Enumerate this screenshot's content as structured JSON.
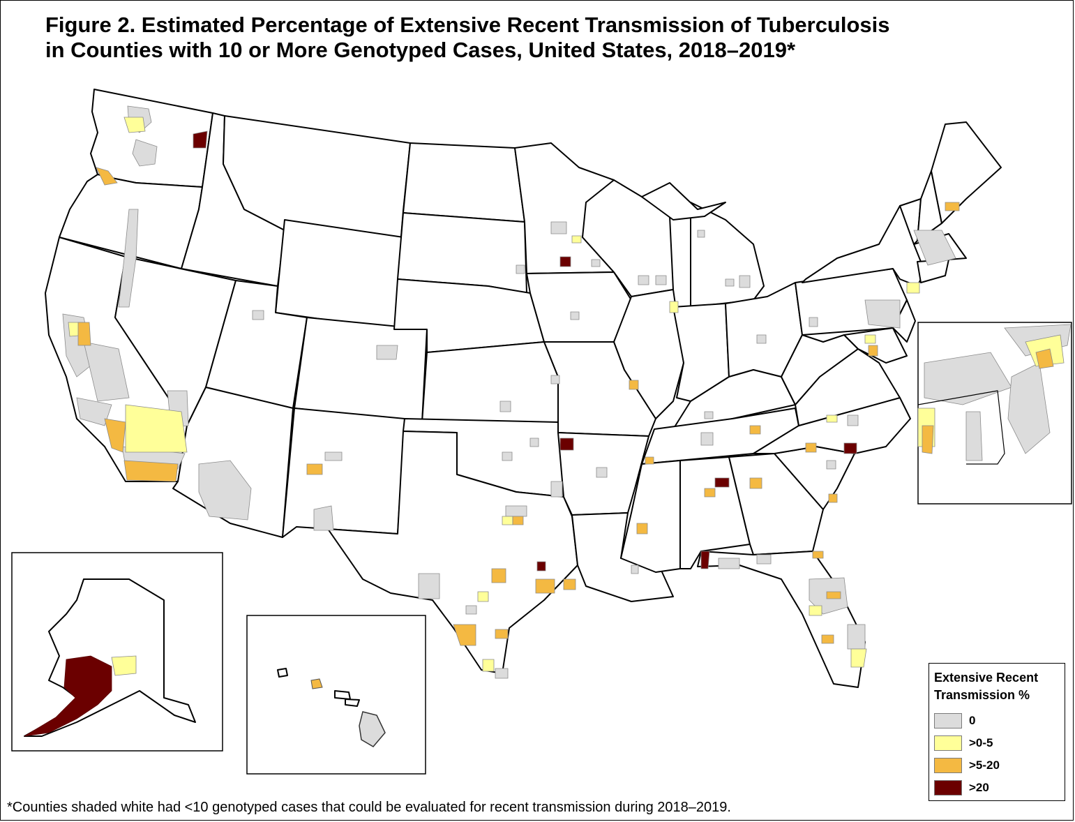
{
  "title": {
    "line1": "Figure 2.  Estimated Percentage of Extensive Recent Transmission of Tuberculosis",
    "line2": "in Counties with 10 or More Genotyped Cases, United States, 2018–2019*"
  },
  "legend": {
    "title": "Extensive Recent Transmission %",
    "items": [
      {
        "label": "0",
        "color": "#dcdcdc"
      },
      {
        "label": ">0-5",
        "color": "#ffff99"
      },
      {
        "label": ">5-20",
        "color": "#f4b942"
      },
      {
        "label": ">20",
        "color": "#6b0000"
      }
    ]
  },
  "footnote": "*Counties shaded white had <10 genotyped cases that could be evaluated for recent transmission during 2018–2019."
}
